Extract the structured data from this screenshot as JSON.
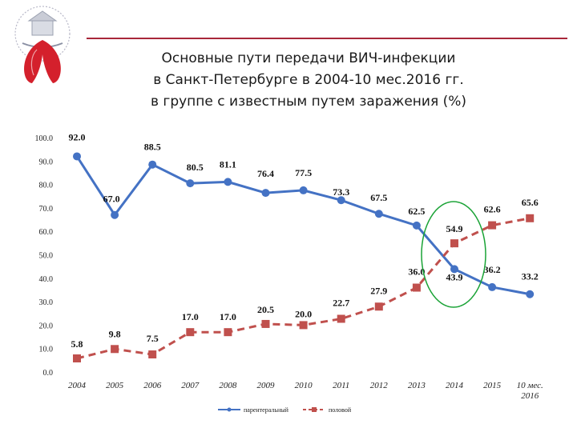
{
  "header": {
    "title_lines": [
      "Основные пути передачи ВИЧ-инфекции",
      "в Санкт-Петербурге в 2004-10 мес.2016 гг.",
      "в группе с известным путем заражения (%)"
    ]
  },
  "colors": {
    "accent_rule": "#a8273a",
    "series_parenteral": "#4472c4",
    "series_sexual": "#c0504d",
    "highlight_circle": "#1aa336"
  },
  "chart_data": {
    "type": "line",
    "title": "Основные пути передачи ВИЧ-инфекции в Санкт-Петербурге в 2004-10 мес.2016 гг. в группе с известным путем заражения (%)",
    "categories": [
      "2004",
      "2005",
      "2006",
      "2007",
      "2008",
      "2009",
      "2010",
      "2011",
      "2012",
      "2013",
      "2014",
      "2015",
      "10 мес.\n2016"
    ],
    "y_ticks": [
      "100.0",
      "90.0",
      "80.0",
      "70.0",
      "60.0",
      "50.0",
      "40.0",
      "30.0",
      "20.0",
      "10.0",
      "0.0"
    ],
    "ylim": [
      0,
      100
    ],
    "grid": false,
    "legend_position": "bottom",
    "series": [
      {
        "name": "парентеральный",
        "values": [
          92.0,
          67.0,
          88.5,
          80.5,
          81.1,
          76.4,
          77.5,
          73.3,
          67.5,
          62.5,
          43.9,
          36.2,
          33.2
        ],
        "labels": [
          "92.0",
          "67.0",
          "88.5",
          "80.5",
          "81.1",
          "76.4",
          "77.5",
          "73.3",
          "67.5",
          "62.5",
          "43.9",
          "36.2",
          "33.2"
        ]
      },
      {
        "name": "половой",
        "values": [
          5.8,
          9.8,
          7.5,
          17.0,
          17.0,
          20.5,
          20.0,
          22.7,
          27.9,
          36.0,
          54.9,
          62.6,
          65.6
        ],
        "labels": [
          "5.8",
          "9.8",
          "7.5",
          "17.0",
          "17.0",
          "20.5",
          "20.0",
          "22.7",
          "27.9",
          "36.0",
          "54.9",
          "62.6",
          "65.6"
        ]
      }
    ]
  }
}
